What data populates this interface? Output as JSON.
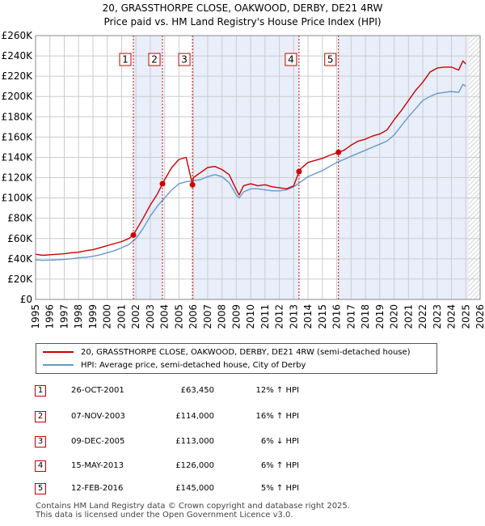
{
  "chart_data": {
    "type": "line",
    "title": "20, GRASSTHORPE CLOSE, OAKWOOD, DERBY, DE21 4RW",
    "subtitle": "Price paid vs. HM Land Registry's House Price Index (HPI)",
    "xlabel": "",
    "ylabel": "",
    "xlim": [
      1995,
      2026
    ],
    "ylim": [
      0,
      260000
    ],
    "x_ticks": [
      "1995",
      "1996",
      "1997",
      "1998",
      "1999",
      "2000",
      "2001",
      "2002",
      "2003",
      "2004",
      "2005",
      "2006",
      "2007",
      "2008",
      "2009",
      "2010",
      "2011",
      "2012",
      "2013",
      "2014",
      "2015",
      "2016",
      "2017",
      "2018",
      "2019",
      "2020",
      "2021",
      "2022",
      "2023",
      "2024",
      "2025",
      "2026"
    ],
    "y_ticks": [
      {
        "value": 0,
        "label": "£0"
      },
      {
        "value": 20000,
        "label": "£20K"
      },
      {
        "value": 40000,
        "label": "£40K"
      },
      {
        "value": 60000,
        "label": "£60K"
      },
      {
        "value": 80000,
        "label": "£80K"
      },
      {
        "value": 100000,
        "label": "£100K"
      },
      {
        "value": 120000,
        "label": "£120K"
      },
      {
        "value": 140000,
        "label": "£140K"
      },
      {
        "value": 160000,
        "label": "£160K"
      },
      {
        "value": 180000,
        "label": "£180K"
      },
      {
        "value": 200000,
        "label": "£200K"
      },
      {
        "value": 220000,
        "label": "£220K"
      },
      {
        "value": 240000,
        "label": "£240K"
      },
      {
        "value": 260000,
        "label": "£260K"
      }
    ],
    "grid": true,
    "shaded_ranges": [
      [
        2001.82,
        2003.85
      ],
      [
        2005.94,
        2013.37
      ],
      [
        2016.12,
        2025.2
      ]
    ],
    "hatched_after": 2025.2,
    "series": [
      {
        "name": "20, GRASSTHORPE CLOSE, OAKWOOD, DERBY, DE21 4RW (semi-detached house)",
        "color": "#cc0000",
        "x": [
          1995,
          1995.5,
          1996,
          1996.5,
          1997,
          1997.5,
          1998,
          1998.5,
          1999,
          1999.5,
          2000,
          2000.5,
          2001,
          2001.5,
          2001.82,
          2002,
          2002.5,
          2003,
          2003.5,
          2003.85,
          2004,
          2004.5,
          2005,
          2005.5,
          2005.94,
          2006,
          2006.5,
          2007,
          2007.5,
          2008,
          2008.5,
          2009,
          2009.2,
          2009.5,
          2010,
          2010.5,
          2011,
          2011.5,
          2012,
          2012.5,
          2013,
          2013.37,
          2013.5,
          2014,
          2014.5,
          2015,
          2015.5,
          2016.12,
          2016.5,
          2017,
          2017.5,
          2018,
          2018.5,
          2019,
          2019.5,
          2020,
          2020.5,
          2021,
          2021.5,
          2022,
          2022.5,
          2023,
          2023.5,
          2024,
          2024.5,
          2024.8,
          2025
        ],
        "values": [
          44500,
          43500,
          44000,
          44500,
          45000,
          46000,
          46500,
          48000,
          49000,
          51000,
          53000,
          55000,
          57000,
          60000,
          63450,
          68000,
          80000,
          93000,
          104000,
          114000,
          118000,
          130000,
          138000,
          140000,
          113000,
          120000,
          125000,
          130000,
          131000,
          128000,
          123000,
          108000,
          103000,
          112000,
          114000,
          112000,
          113000,
          111000,
          110000,
          109000,
          112000,
          126000,
          129000,
          135000,
          137000,
          139000,
          142000,
          145000,
          147000,
          152000,
          156000,
          158000,
          161000,
          163000,
          167000,
          177000,
          186000,
          196000,
          206000,
          214000,
          224000,
          228000,
          229000,
          229000,
          226000,
          235000,
          232000
        ]
      },
      {
        "name": "HPI: Average price, semi-detached house, City of Derby",
        "color": "#6699cc",
        "x": [
          1995,
          1995.5,
          1996,
          1996.5,
          1997,
          1997.5,
          1998,
          1998.5,
          1999,
          1999.5,
          2000,
          2000.5,
          2001,
          2001.5,
          2002,
          2002.5,
          2003,
          2003.5,
          2004,
          2004.5,
          2005,
          2005.5,
          2006,
          2006.5,
          2007,
          2007.5,
          2008,
          2008.5,
          2009,
          2009.2,
          2009.5,
          2010,
          2010.5,
          2011,
          2011.5,
          2012,
          2012.5,
          2013,
          2013.5,
          2014,
          2014.5,
          2015,
          2015.5,
          2016,
          2016.5,
          2017,
          2017.5,
          2018,
          2018.5,
          2019,
          2019.5,
          2020,
          2020.5,
          2021,
          2021.5,
          2022,
          2022.5,
          2023,
          2023.5,
          2024,
          2024.5,
          2024.8,
          2025
        ],
        "values": [
          39000,
          38500,
          38800,
          39000,
          39500,
          40000,
          41000,
          41500,
          42500,
          44000,
          46000,
          48000,
          51000,
          54000,
          60000,
          70000,
          82000,
          92000,
          100000,
          108000,
          114000,
          116000,
          117000,
          118000,
          121000,
          123000,
          121000,
          115000,
          103000,
          100000,
          106000,
          109000,
          109000,
          108000,
          107000,
          107000,
          108000,
          111000,
          116000,
          121000,
          124000,
          127000,
          131000,
          135000,
          138000,
          141000,
          144000,
          147000,
          150000,
          153000,
          156000,
          162000,
          171000,
          180000,
          188000,
          196000,
          200000,
          203000,
          204000,
          205000,
          204000,
          212000,
          210000
        ]
      }
    ],
    "markers": [
      {
        "label": "1",
        "x": 2001.82,
        "value": 63450
      },
      {
        "label": "2",
        "x": 2003.85,
        "value": 114000
      },
      {
        "label": "3",
        "x": 2005.94,
        "value": 113000
      },
      {
        "label": "4",
        "x": 2013.37,
        "value": 126000
      },
      {
        "label": "5",
        "x": 2016.12,
        "value": 145000
      }
    ]
  },
  "legend": {
    "property": "20, GRASSTHORPE CLOSE, OAKWOOD, DERBY, DE21 4RW (semi-detached house)",
    "hpi": "HPI: Average price, semi-detached house, City of Derby"
  },
  "events": [
    {
      "num": "1",
      "date": "26-OCT-2001",
      "price": "£63,450",
      "hpi": "12% ↑ HPI"
    },
    {
      "num": "2",
      "date": "07-NOV-2003",
      "price": "£114,000",
      "hpi": "16% ↑ HPI"
    },
    {
      "num": "3",
      "date": "09-DEC-2005",
      "price": "£113,000",
      "hpi": "6% ↓ HPI"
    },
    {
      "num": "4",
      "date": "15-MAY-2013",
      "price": "£126,000",
      "hpi": "6% ↑ HPI"
    },
    {
      "num": "5",
      "date": "12-FEB-2016",
      "price": "£145,000",
      "hpi": "5% ↑ HPI"
    }
  ],
  "footer": {
    "line1": "Contains HM Land Registry data © Crown copyright and database right 2025.",
    "line2": "This data is licensed under the Open Government Licence v3.0."
  }
}
